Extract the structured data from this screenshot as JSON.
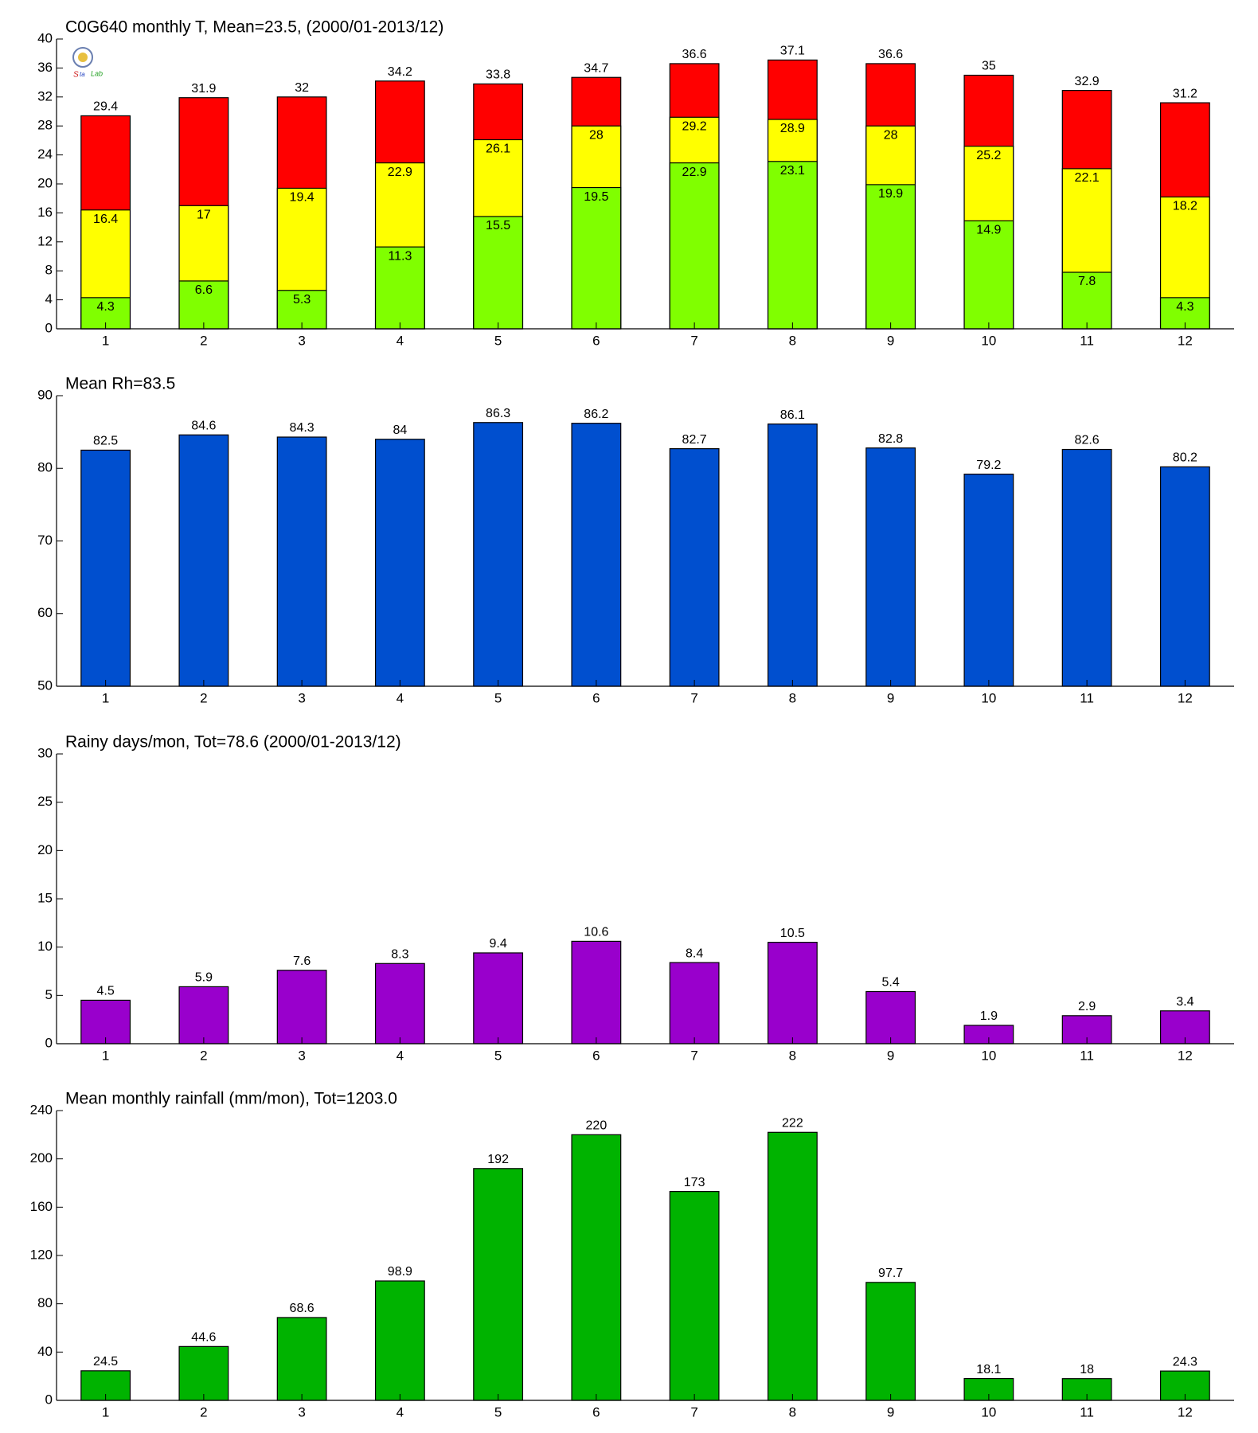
{
  "chart_data": [
    {
      "type": "bar",
      "title": "C0G640 monthly T, Mean=23.5, (2000/01-2013/12)",
      "categories": [
        "1",
        "2",
        "3",
        "4",
        "5",
        "6",
        "7",
        "8",
        "9",
        "10",
        "11",
        "12"
      ],
      "series": [
        {
          "color": "#ff0000",
          "values": [
            29.4,
            31.9,
            32,
            34.2,
            33.8,
            34.7,
            36.6,
            37.1,
            36.6,
            35,
            32.9,
            31.2
          ]
        },
        {
          "color": "#ffff00",
          "values": [
            16.4,
            17,
            19.4,
            22.9,
            26.1,
            28,
            29.2,
            28.9,
            28,
            25.2,
            22.1,
            18.2
          ]
        },
        {
          "color": "#80ff00",
          "values": [
            4.3,
            6.6,
            5.3,
            11.3,
            15.5,
            19.5,
            22.9,
            23.1,
            19.9,
            14.9,
            7.8,
            4.3
          ]
        }
      ],
      "ylim": [
        0,
        40
      ],
      "yticks": [
        0,
        4,
        8,
        12,
        16,
        20,
        24,
        28,
        32,
        36,
        40
      ]
    },
    {
      "type": "bar",
      "title": "Mean Rh=83.5",
      "categories": [
        "1",
        "2",
        "3",
        "4",
        "5",
        "6",
        "7",
        "8",
        "9",
        "10",
        "11",
        "12"
      ],
      "series": [
        {
          "color": "#004fcf",
          "values": [
            82.5,
            84.6,
            84.3,
            84,
            86.3,
            86.2,
            82.7,
            86.1,
            82.8,
            79.2,
            82.6,
            80.2
          ]
        }
      ],
      "ylim": [
        50,
        90
      ],
      "yticks": [
        50,
        60,
        70,
        80,
        90
      ]
    },
    {
      "type": "bar",
      "title": "Rainy days/mon, Tot=78.6 (2000/01-2013/12)",
      "categories": [
        "1",
        "2",
        "3",
        "4",
        "5",
        "6",
        "7",
        "8",
        "9",
        "10",
        "11",
        "12"
      ],
      "series": [
        {
          "color": "#9900cc",
          "values": [
            4.5,
            5.9,
            7.6,
            8.3,
            9.4,
            10.6,
            8.4,
            10.5,
            5.4,
            1.9,
            2.9,
            3.4
          ]
        }
      ],
      "ylim": [
        0,
        30
      ],
      "yticks": [
        0,
        5,
        10,
        15,
        20,
        25,
        30
      ]
    },
    {
      "type": "bar",
      "title": "Mean monthly rainfall (mm/mon), Tot=1203.0",
      "categories": [
        "1",
        "2",
        "3",
        "4",
        "5",
        "6",
        "7",
        "8",
        "9",
        "10",
        "11",
        "12"
      ],
      "series": [
        {
          "color": "#00b300",
          "values": [
            24.5,
            44.6,
            68.6,
            98.9,
            192,
            220,
            173,
            222,
            97.7,
            18.1,
            18,
            24.3
          ]
        }
      ],
      "ylim": [
        0,
        240
      ],
      "yticks": [
        0,
        40,
        80,
        120,
        160,
        200,
        240
      ]
    }
  ]
}
